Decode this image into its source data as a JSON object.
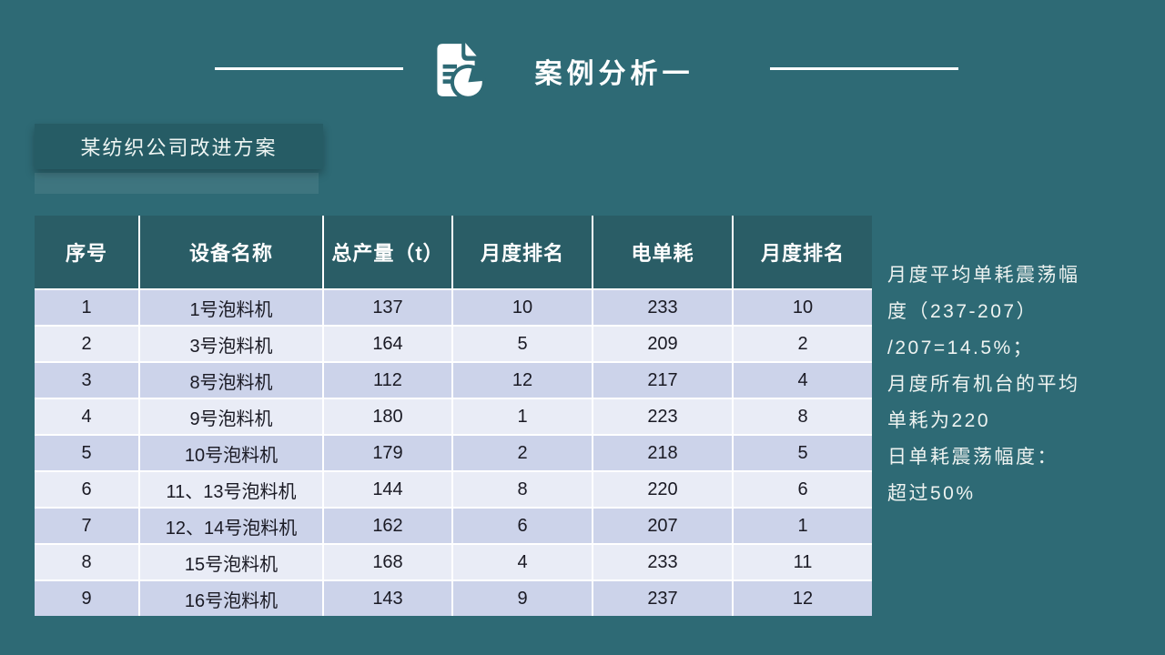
{
  "slide": {
    "title": "案例分析一",
    "subtitle": "某纺织公司改进方案"
  },
  "table": {
    "headers": [
      "序号",
      "设备名称",
      "总产量（t）",
      "月度排名",
      "电单耗",
      "月度排名"
    ],
    "rows": [
      [
        "1",
        "1号泡料机",
        "137",
        "10",
        "233",
        "10"
      ],
      [
        "2",
        "3号泡料机",
        "164",
        "5",
        "209",
        "2"
      ],
      [
        "3",
        "8号泡料机",
        "112",
        "12",
        "217",
        "4"
      ],
      [
        "4",
        "9号泡料机",
        "180",
        "1",
        "223",
        "8"
      ],
      [
        "5",
        "10号泡料机",
        "179",
        "2",
        "218",
        "5"
      ],
      [
        "6",
        "11、13号泡料机",
        "144",
        "8",
        "220",
        "6"
      ],
      [
        "7",
        "12、14号泡料机",
        "162",
        "6",
        "207",
        "1"
      ],
      [
        "8",
        "15号泡料机",
        "168",
        "4",
        "233",
        "11"
      ],
      [
        "9",
        "16号泡料机",
        "143",
        "9",
        "237",
        "12"
      ]
    ]
  },
  "notes": {
    "lines": [
      "月度平均单耗震荡幅",
      "度（237-207）",
      "/207=14.5%；",
      "月度所有机台的平均",
      "单耗为220",
      "日单耗震荡幅度：",
      "超过50%"
    ]
  },
  "icons": {
    "title_icon": "document-chart-icon"
  },
  "colors": {
    "background": "#2e6a75",
    "header_teal": "#2a5d66",
    "subtitle_teal": "#265c65",
    "row_odd": "#ccd3ea",
    "row_even": "#e9ecf6",
    "text_dark": "#1a1a24",
    "text_light": "#ffffff"
  }
}
